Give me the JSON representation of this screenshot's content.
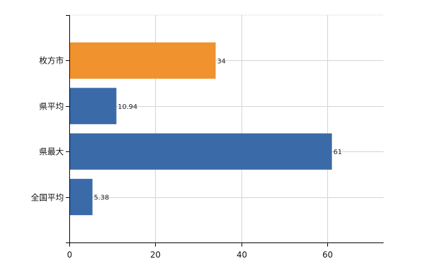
{
  "chart_data": {
    "type": "bar",
    "orientation": "horizontal",
    "categories": [
      "枚方市",
      "県平均",
      "県最大",
      "全国平均"
    ],
    "values": [
      34,
      10.94,
      61,
      5.38
    ],
    "value_labels": [
      "34",
      "10.94",
      "61",
      "5.38"
    ],
    "bar_colors": [
      "#f0922e",
      "#3a6aa8",
      "#3a6aa8",
      "#3a6aa8"
    ],
    "xlim": [
      0,
      73
    ],
    "xticks": [
      0,
      20,
      40,
      60
    ],
    "xtick_labels": [
      "0",
      "20",
      "40",
      "60"
    ],
    "grid": true,
    "legend": "none",
    "title": "",
    "xlabel": "",
    "ylabel": ""
  }
}
